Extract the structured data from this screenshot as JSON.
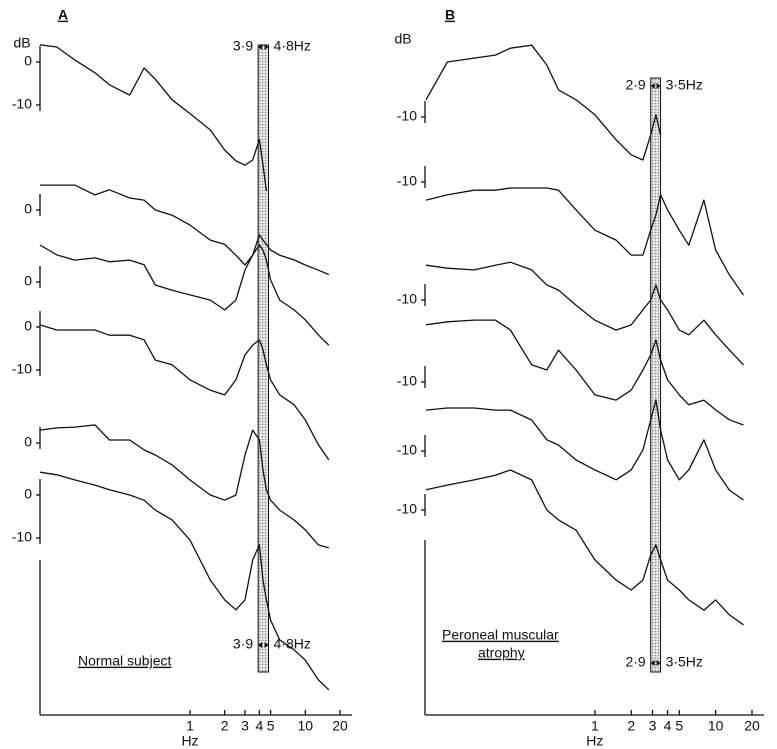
{
  "chart_data": [
    {
      "type": "line",
      "panel_label": "A",
      "y_unit": "dB",
      "x_label": "Hz",
      "caption": [
        "Normal subject"
      ],
      "xscale": "log",
      "xlim": [
        0.05,
        20
      ],
      "xticks": [
        1,
        2,
        3,
        4,
        5,
        10,
        20
      ],
      "color": "#111111",
      "band": [
        {
          "value": 3.9,
          "label": "3·9"
        },
        {
          "value": 4.8,
          "label": "4·8Hz"
        }
      ],
      "x": [
        0.05,
        0.07,
        0.1,
        0.15,
        0.2,
        0.3,
        0.4,
        0.5,
        0.7,
        1,
        1.5,
        2,
        2.5,
        3,
        3.5,
        4,
        4.3,
        4.6,
        5,
        6,
        8,
        10,
        13,
        16
      ],
      "series": [
        {
          "yticks": [
            0,
            -10
          ],
          "values": [
            4,
            3.5,
            0.5,
            -2.5,
            -5.3,
            -7.7,
            -1.4,
            -4,
            -8.8,
            -12,
            -15.8,
            -20.5,
            -23,
            -24,
            -22.8,
            -18,
            -24,
            -30,
            null,
            null,
            null,
            null,
            null,
            null
          ]
        },
        {
          "yticks": [
            0
          ],
          "values": [
            5.8,
            5.8,
            5.8,
            3.5,
            4.7,
            2.8,
            2.3,
            0,
            -1.2,
            -3.5,
            -7,
            -8,
            -10.5,
            -12.8,
            -10.5,
            -5.8,
            -7,
            -8,
            -9.3,
            -10.5,
            -11.6,
            -12.8,
            -14,
            -15
          ]
        },
        {
          "yticks": [
            0
          ],
          "values": [
            8.6,
            6.3,
            5.1,
            5.6,
            4.7,
            5.1,
            4,
            -0.7,
            -1.9,
            -3,
            -4.2,
            -6.5,
            -4.2,
            2.8,
            6.3,
            8.6,
            7.4,
            5.1,
            0.5,
            -4.2,
            -6.5,
            -8.8,
            -12.3,
            -14.7
          ]
        },
        {
          "yticks": [
            0,
            -10
          ],
          "values": [
            0.5,
            -0.7,
            -0.7,
            -0.7,
            -1.9,
            -1.9,
            -3,
            -7.7,
            -8.8,
            -12.3,
            -14.7,
            -15.8,
            -12.3,
            -6.5,
            -4.2,
            -3,
            -5.3,
            -8.8,
            -12.3,
            -15.8,
            -18.1,
            -21.6,
            -27.4,
            -30.9
          ]
        },
        {
          "yticks": [
            0
          ],
          "values": [
            3,
            3.5,
            3.7,
            4.2,
            0.7,
            0.7,
            -1.6,
            -2.8,
            -5.1,
            -8.6,
            -12.1,
            -13.3,
            -12.1,
            -2.8,
            3,
            0.7,
            -6.3,
            -10.9,
            -13.3,
            -15.6,
            -17.9,
            -20.2,
            -23.7,
            -24.4
          ]
        },
        {
          "yticks": [
            0,
            -10
          ],
          "values": [
            5.3,
            4.7,
            3.5,
            2.3,
            1.2,
            0,
            -1.2,
            -3.5,
            -5.8,
            -10.5,
            -19.8,
            -24.4,
            -26.7,
            -24.4,
            -15.1,
            -11.6,
            -19.8,
            -24.4,
            -29.1,
            -33.7,
            -36,
            -38.4,
            -43,
            -45.3
          ]
        }
      ]
    },
    {
      "type": "line",
      "panel_label": "B",
      "y_unit": "dB",
      "x_label": "Hz",
      "caption": [
        "Peroneal muscular",
        "atrophy"
      ],
      "xscale": "log",
      "xlim": [
        0.04,
        20
      ],
      "xticks": [
        1,
        2,
        3,
        4,
        5,
        10,
        20
      ],
      "color": "#111111",
      "band": [
        {
          "value": 2.9,
          "label": "2·9"
        },
        {
          "value": 3.5,
          "label": "3·5Hz"
        }
      ],
      "x": [
        0.04,
        0.06,
        0.1,
        0.15,
        0.2,
        0.3,
        0.4,
        0.5,
        0.7,
        1,
        1.5,
        2,
        2.5,
        2.9,
        3.2,
        3.5,
        4,
        5,
        6,
        8,
        10,
        13,
        17
      ],
      "series": [
        {
          "yticks": [
            -10
          ],
          "values": [
            -6,
            2.8,
            3.7,
            4.4,
            6,
            6.7,
            2.1,
            -3.7,
            -6,
            -9.5,
            -15.3,
            -18.8,
            -20,
            -14.2,
            -9.5,
            -14.2,
            null,
            null,
            null,
            null,
            null,
            null,
            null
          ]
        },
        {
          "yticks": [
            -10
          ],
          "values": [
            -14.2,
            -13,
            -11.9,
            -11.9,
            -11.4,
            -11.4,
            -11.4,
            -11.9,
            -16.5,
            -21.2,
            -23.5,
            -27,
            -27,
            -21.2,
            -17.7,
            -13,
            -16.5,
            -21.2,
            -24.7,
            -14.2,
            -25.8,
            -31.6,
            -36.3
          ]
        },
        {
          "yticks": [
            -10
          ],
          "values": [
            -1.9,
            -2.6,
            -3,
            -1.9,
            -1.2,
            -3,
            -6.5,
            -7.7,
            -11.2,
            -14.7,
            -17,
            -15.8,
            -12.3,
            -10,
            -6.5,
            -10,
            -12.3,
            -17,
            -18.1,
            -14.7,
            -18.1,
            -21.6,
            -25.1
          ]
        },
        {
          "yticks": [
            -10
          ],
          "values": [
            3.3,
            4,
            4.4,
            4.4,
            2.1,
            -6,
            -7.2,
            -2.6,
            -7.2,
            -13,
            -14.2,
            -11.9,
            -7.2,
            -3.7,
            -0.2,
            -4.9,
            -9.5,
            -13,
            -15.3,
            -14.2,
            -16.5,
            -18.8,
            -20
          ]
        },
        {
          "yticks": [
            -10
          ],
          "values": [
            -0.5,
            0,
            0,
            -0.5,
            -0.5,
            -2.8,
            -7.4,
            -8.6,
            -12.1,
            -14.4,
            -16.7,
            -14.4,
            -9.8,
            -2.8,
            1.9,
            -5.1,
            -12.1,
            -16.7,
            -14.4,
            -7.4,
            -14.4,
            -19.1,
            -21.4
          ]
        },
        {
          "yticks": [
            -10
          ],
          "values": [
            -5.3,
            -4.2,
            -3,
            -1.9,
            -0.7,
            -3,
            -10,
            -12.3,
            -14.7,
            -21.6,
            -26.3,
            -28.6,
            -26.3,
            -20.5,
            -18.1,
            -21.6,
            -26.3,
            -28.6,
            -30.9,
            -33.3,
            -30.9,
            -34.4,
            -36.7
          ]
        }
      ]
    }
  ]
}
